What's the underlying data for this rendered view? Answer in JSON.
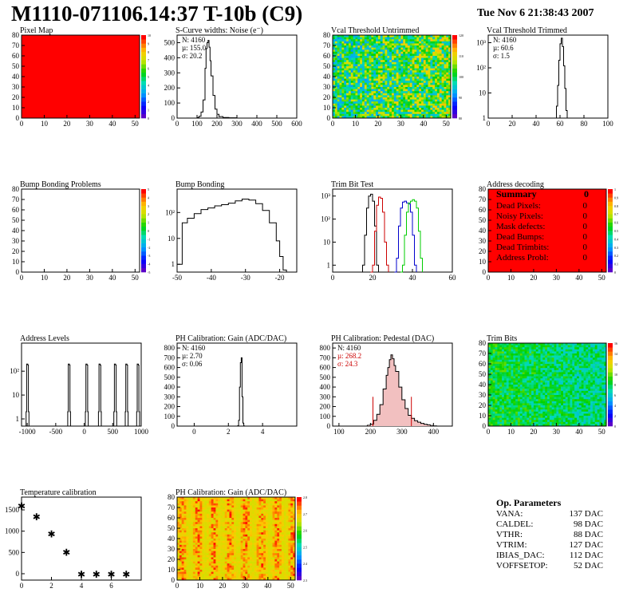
{
  "header": {
    "title": "M1110-071106.14:37 T-10b (C9)",
    "date": "Tue Nov  6 21:38:43 2007"
  },
  "summary": {
    "title": "Summary",
    "total": "0",
    "rows": [
      {
        "label": "Dead Pixels:",
        "value": "0"
      },
      {
        "label": "Noisy Pixels:",
        "value": "0"
      },
      {
        "label": "Mask defects:",
        "value": "0"
      },
      {
        "label": "Dead Bumps:",
        "value": "0"
      },
      {
        "label": "Dead Trimbits:",
        "value": "0"
      },
      {
        "label": "Address Probl:",
        "value": "0"
      }
    ]
  },
  "op_params": {
    "title": "Op. Parameters",
    "rows": [
      {
        "label": "VANA:",
        "value": "137 DAC"
      },
      {
        "label": "CALDEL:",
        "value": "98 DAC"
      },
      {
        "label": "VTHR:",
        "value": "88 DAC"
      },
      {
        "label": "VTRIM:",
        "value": "127 DAC"
      },
      {
        "label": "IBIAS_DAC:",
        "value": "112 DAC"
      },
      {
        "label": "VOFFSETOP:",
        "value": "52 DAC"
      }
    ]
  },
  "chart_data": [
    {
      "id": "pixel-map",
      "type": "heatmap",
      "title": "Pixel Map",
      "fill": "uniform",
      "color": "#ff0000",
      "xlim": [
        0,
        52
      ],
      "ylim": [
        0,
        80
      ],
      "xticks": [
        0,
        10,
        20,
        30,
        40,
        50
      ],
      "yticks": [
        0,
        10,
        20,
        30,
        40,
        50,
        60,
        70,
        80
      ],
      "palette_ticks": [
        "0",
        "1",
        "2",
        "3",
        "4",
        "5",
        "6",
        "7",
        "8",
        "9",
        "10"
      ]
    },
    {
      "id": "scurve",
      "type": "histogram",
      "title": "S-Curve widths: Noise (e⁻)",
      "xlim": [
        0,
        600
      ],
      "ylim": [
        0,
        550
      ],
      "xticks": [
        0,
        100,
        200,
        300,
        400,
        500,
        600
      ],
      "yticks": [
        0,
        100,
        200,
        300,
        400,
        500
      ],
      "stats": [
        "N: 4160",
        "µ: 155.0",
        "σ: 20.2"
      ],
      "points": [
        [
          95,
          0
        ],
        [
          100,
          4
        ],
        [
          110,
          12
        ],
        [
          120,
          40
        ],
        [
          130,
          120
        ],
        [
          140,
          330
        ],
        [
          145,
          460
        ],
        [
          150,
          500
        ],
        [
          155,
          515
        ],
        [
          160,
          470
        ],
        [
          165,
          380
        ],
        [
          170,
          280
        ],
        [
          180,
          150
        ],
        [
          190,
          60
        ],
        [
          200,
          25
        ],
        [
          210,
          10
        ],
        [
          230,
          4
        ],
        [
          260,
          2
        ],
        [
          300,
          0
        ]
      ]
    },
    {
      "id": "vcal-untrimmed",
      "type": "heatmap",
      "title": "Vcal Threshold Untrimmed",
      "fill": "noise",
      "xlim": [
        0,
        52
      ],
      "ylim": [
        0,
        80
      ],
      "xticks": [
        0,
        10,
        20,
        30,
        40,
        50
      ],
      "yticks": [
        0,
        10,
        20,
        30,
        40,
        50,
        60,
        70,
        80
      ],
      "palette_ticks": [
        "80",
        "90",
        "100",
        "110",
        "120"
      ]
    },
    {
      "id": "vcal-trimmed",
      "type": "histogram",
      "title": "Vcal Threshold Trimmed",
      "log": true,
      "xlim": [
        0,
        100
      ],
      "ylim": [
        1,
        2000
      ],
      "xticks": [
        0,
        20,
        40,
        60,
        80,
        100
      ],
      "yticks": [
        1,
        10,
        100,
        1000
      ],
      "stats": [
        "N: 4160",
        "µ: 60.6",
        "σ:  1.5"
      ],
      "points": [
        [
          55,
          1
        ],
        [
          57,
          3
        ],
        [
          58,
          20
        ],
        [
          59,
          200
        ],
        [
          60,
          900
        ],
        [
          61,
          1500
        ],
        [
          62,
          700
        ],
        [
          63,
          120
        ],
        [
          64,
          15
        ],
        [
          65,
          2
        ],
        [
          66,
          1
        ]
      ]
    },
    {
      "id": "bump-problems",
      "type": "heatmap",
      "title": "Bump Bonding Problems",
      "fill": "empty",
      "xlim": [
        0,
        52
      ],
      "ylim": [
        0,
        80
      ],
      "xticks": [
        0,
        10,
        20,
        30,
        40,
        50
      ],
      "yticks": [
        0,
        10,
        20,
        30,
        40,
        50,
        60,
        70,
        80
      ],
      "palette_ticks": [
        "-5",
        "-4",
        "-3",
        "-2",
        "-1",
        "0",
        "1",
        "2",
        "3",
        "4",
        "5"
      ]
    },
    {
      "id": "bump-bonding",
      "type": "histogram",
      "title": "Bump Bonding",
      "log": true,
      "xlim": [
        -50,
        -15
      ],
      "ylim": [
        0.5,
        800
      ],
      "xticks": [
        -50,
        -40,
        -30,
        -20
      ],
      "yticks": [
        1,
        10,
        100
      ],
      "points": [
        [
          -50,
          1
        ],
        [
          -48.5,
          40
        ],
        [
          -47,
          60
        ],
        [
          -45,
          90
        ],
        [
          -43,
          130
        ],
        [
          -41,
          150
        ],
        [
          -39,
          180
        ],
        [
          -37,
          200
        ],
        [
          -35,
          230
        ],
        [
          -33,
          280
        ],
        [
          -31,
          330
        ],
        [
          -29,
          300
        ],
        [
          -27,
          220
        ],
        [
          -25,
          120
        ],
        [
          -23,
          40
        ],
        [
          -21,
          8
        ],
        [
          -20,
          2
        ],
        [
          -19,
          0.6
        ],
        [
          -18,
          0.5
        ]
      ]
    },
    {
      "id": "trim-bit-test",
      "type": "histogram",
      "title": "Trim Bit Test",
      "log": true,
      "xlim": [
        0,
        60
      ],
      "ylim": [
        0.5,
        2000
      ],
      "xticks": [
        0,
        20,
        40,
        60
      ],
      "yticks": [
        1,
        10,
        100,
        1000
      ],
      "series": [
        {
          "color": "#000000",
          "points": [
            [
              14,
              0.5
            ],
            [
              15,
              1
            ],
            [
              16,
              20
            ],
            [
              17,
              300
            ],
            [
              18,
              1000
            ],
            [
              19,
              1200
            ],
            [
              20,
              600
            ],
            [
              21,
              50
            ],
            [
              22,
              1
            ],
            [
              23,
              0.5
            ]
          ]
        },
        {
          "color": "#cc0000",
          "points": [
            [
              19,
              0.5
            ],
            [
              20,
              1
            ],
            [
              21,
              30
            ],
            [
              22,
              400
            ],
            [
              23,
              900
            ],
            [
              24,
              800
            ],
            [
              25,
              200
            ],
            [
              26,
              10
            ],
            [
              27,
              1
            ],
            [
              28,
              0.5
            ]
          ]
        },
        {
          "color": "#0000cc",
          "points": [
            [
              31,
              0.5
            ],
            [
              32,
              2
            ],
            [
              33,
              50
            ],
            [
              34,
              300
            ],
            [
              35,
              550
            ],
            [
              36,
              600
            ],
            [
              37,
              500
            ],
            [
              38,
              450
            ],
            [
              39,
              200
            ],
            [
              40,
              20
            ],
            [
              41,
              1
            ],
            [
              42,
              0.5
            ]
          ]
        },
        {
          "color": "#00cc00",
          "points": [
            [
              34,
              0.5
            ],
            [
              35,
              1
            ],
            [
              36,
              20
            ],
            [
              37,
              200
            ],
            [
              38,
              500
            ],
            [
              39,
              600
            ],
            [
              40,
              700
            ],
            [
              41,
              600
            ],
            [
              42,
              300
            ],
            [
              43,
              30
            ],
            [
              44,
              2
            ],
            [
              45,
              0.5
            ]
          ]
        }
      ]
    },
    {
      "id": "address-decoding",
      "type": "heatmap",
      "title": "Address decoding",
      "fill": "uniform",
      "color": "#ff0000",
      "xlim": [
        0,
        52
      ],
      "ylim": [
        0,
        80
      ],
      "xticks": [
        0,
        10,
        20,
        30,
        40,
        50
      ],
      "yticks": [
        0,
        10,
        20,
        30,
        40,
        50,
        60,
        70,
        80
      ],
      "palette_ticks": [
        "0",
        "0.1",
        "0.2",
        "0.3",
        "0.4",
        "0.5",
        "0.6",
        "0.7",
        "0.8",
        "0.9",
        "1"
      ]
    },
    {
      "id": "address-levels",
      "type": "histogram",
      "title": "Address Levels",
      "log": true,
      "xlim": [
        -1100,
        1000
      ],
      "ylim": [
        0.5,
        1500
      ],
      "xticks": [
        -1000,
        -500,
        0,
        500,
        1000
      ],
      "yticks": [
        1,
        10,
        100
      ],
      "peaks": [
        -1000,
        -270,
        40,
        270,
        540,
        740,
        940
      ],
      "peak_height": 200
    },
    {
      "id": "ph-gain",
      "type": "histogram",
      "title": "PH Calibration: Gain (ADC/DAC)",
      "xlim": [
        -1,
        6
      ],
      "ylim": [
        0,
        850
      ],
      "xticks": [
        0,
        2,
        4
      ],
      "yticks": [
        0,
        100,
        200,
        300,
        400,
        500,
        600,
        700,
        800
      ],
      "stats": [
        "N: 4160",
        "µ: 2.70",
        "σ: 0.06"
      ],
      "points": [
        [
          2.5,
          0
        ],
        [
          2.55,
          5
        ],
        [
          2.6,
          60
        ],
        [
          2.65,
          400
        ],
        [
          2.7,
          650
        ],
        [
          2.75,
          700
        ],
        [
          2.8,
          300
        ],
        [
          2.85,
          30
        ],
        [
          2.9,
          2
        ],
        [
          2.95,
          0
        ]
      ]
    },
    {
      "id": "ph-pedestal",
      "type": "histogram",
      "title": "PH Calibration: Pedestal (DAC)",
      "xlim": [
        80,
        460
      ],
      "ylim": [
        0,
        850
      ],
      "xticks": [
        100,
        200,
        300,
        400
      ],
      "yticks": [
        0,
        100,
        200,
        300,
        400,
        500,
        600,
        700,
        800
      ],
      "stats": [
        "N: 4160",
        "µ: 268.2",
        "σ: 24.3"
      ],
      "fit_lines": [
        208,
        330
      ],
      "points": [
        [
          180,
          0
        ],
        [
          190,
          8
        ],
        [
          200,
          20
        ],
        [
          210,
          60
        ],
        [
          220,
          120
        ],
        [
          230,
          220
        ],
        [
          240,
          380
        ],
        [
          250,
          520
        ],
        [
          255,
          600
        ],
        [
          260,
          680
        ],
        [
          265,
          730
        ],
        [
          270,
          690
        ],
        [
          275,
          620
        ],
        [
          280,
          560
        ],
        [
          290,
          400
        ],
        [
          300,
          270
        ],
        [
          310,
          180
        ],
        [
          320,
          110
        ],
        [
          330,
          80
        ],
        [
          340,
          55
        ],
        [
          350,
          40
        ],
        [
          360,
          28
        ],
        [
          370,
          18
        ],
        [
          380,
          12
        ],
        [
          390,
          6
        ],
        [
          400,
          2
        ],
        [
          410,
          0
        ]
      ]
    },
    {
      "id": "trim-bits",
      "type": "heatmap",
      "title": "Trim Bits",
      "fill": "noise-green",
      "xlim": [
        0,
        52
      ],
      "ylim": [
        0,
        80
      ],
      "xticks": [
        0,
        10,
        20,
        30,
        40,
        50
      ],
      "yticks": [
        0,
        10,
        20,
        30,
        40,
        50,
        60,
        70,
        80
      ],
      "palette_ticks": [
        "0",
        "2",
        "4",
        "6",
        "8",
        "10",
        "12",
        "14",
        "16"
      ]
    },
    {
      "id": "temperature",
      "type": "scatter",
      "title": "Temperature calibration",
      "xlim": [
        0,
        8
      ],
      "ylim": [
        -150,
        1800
      ],
      "xticks": [
        0,
        2,
        4,
        6
      ],
      "yticks": [
        0,
        500,
        1000,
        1500
      ],
      "x": [
        0,
        1,
        2,
        3,
        4,
        5,
        6,
        7
      ],
      "y": [
        1600,
        1350,
        950,
        520,
        0,
        0,
        0,
        0
      ]
    },
    {
      "id": "ph-gain-map",
      "type": "heatmap",
      "title": "PH Calibration: Gain (ADC/DAC)",
      "fill": "noise-red",
      "xlim": [
        0,
        52
      ],
      "ylim": [
        0,
        80
      ],
      "xticks": [
        0,
        10,
        20,
        30,
        40,
        50
      ],
      "yticks": [
        0,
        10,
        20,
        30,
        40,
        50,
        60,
        70,
        80
      ],
      "palette_ticks": [
        "2.3",
        "2.4",
        "2.5",
        "2.6",
        "2.7",
        "2.8"
      ]
    }
  ]
}
